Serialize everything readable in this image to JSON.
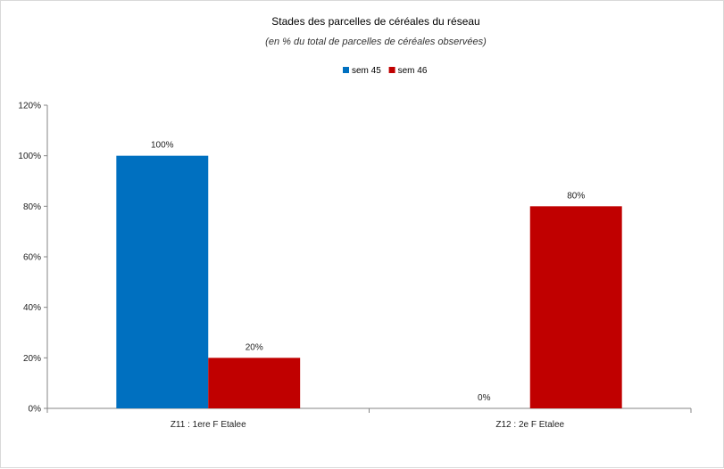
{
  "chart_data": {
    "type": "bar",
    "title": "Stades des parcelles de céréales du réseau",
    "subtitle": "(en %  du total de parcelles de céréales observées)",
    "categories": [
      "Z11 : 1ere F Etalee",
      "Z12 : 2e F Etalee"
    ],
    "series": [
      {
        "name": "sem 45",
        "values": [
          100,
          0
        ],
        "color": "#0070c0"
      },
      {
        "name": "sem 46",
        "values": [
          20,
          80
        ],
        "color": "#c00000"
      }
    ],
    "data_labels": [
      [
        "100%",
        "0%"
      ],
      [
        "20%",
        "80%"
      ]
    ],
    "y_ticks": [
      "0%",
      "20%",
      "40%",
      "60%",
      "80%",
      "100%",
      "120%"
    ],
    "ylim": [
      0,
      120
    ],
    "xlabel": "",
    "ylabel": "",
    "grid": false,
    "legend_position": "top"
  }
}
